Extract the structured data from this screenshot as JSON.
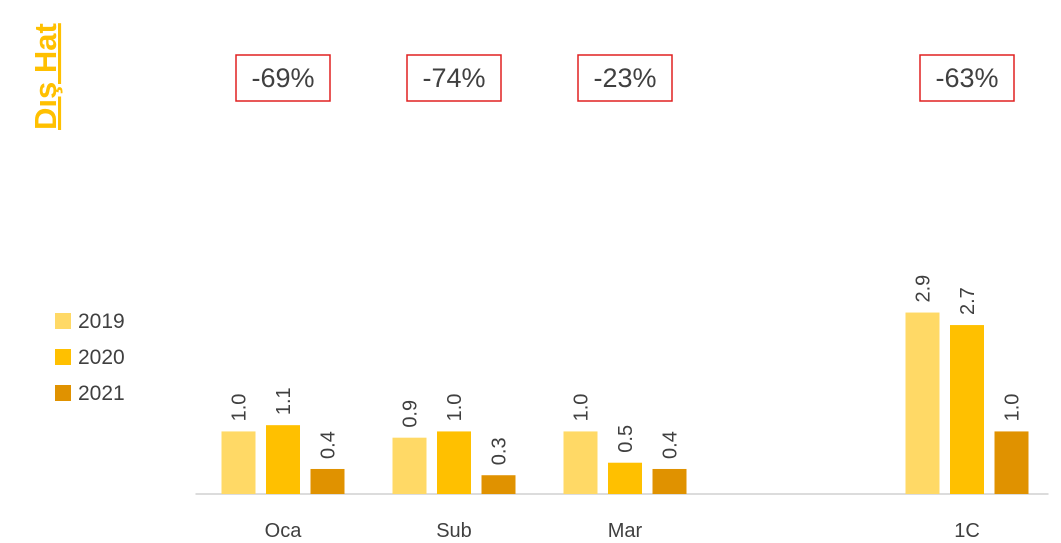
{
  "chart_data": {
    "type": "bar",
    "title": "Dış Hat",
    "categories": [
      "Oca",
      "Sub",
      "Mar",
      null,
      "1C"
    ],
    "change_labels": [
      "-69%",
      "-74%",
      "-23%",
      null,
      "-63%"
    ],
    "series": [
      {
        "name": "2019",
        "color": "#FFD966",
        "values": [
          1.0,
          0.9,
          1.0,
          null,
          2.9
        ],
        "value_labels": [
          "1.0",
          "0.9",
          "1.0",
          null,
          "2.9"
        ]
      },
      {
        "name": "2020",
        "color": "#FFC000",
        "values": [
          1.1,
          1.0,
          0.5,
          null,
          2.7
        ],
        "value_labels": [
          "1.1",
          "1.0",
          "0.5",
          null,
          "2.7"
        ]
      },
      {
        "name": "2021",
        "color": "#E09200",
        "values": [
          0.4,
          0.3,
          0.4,
          null,
          1.0
        ],
        "value_labels": [
          "0.4",
          "0.3",
          "0.4",
          null,
          "1.0"
        ]
      }
    ],
    "ylim": [
      0,
      3.5
    ],
    "legend": "left"
  }
}
